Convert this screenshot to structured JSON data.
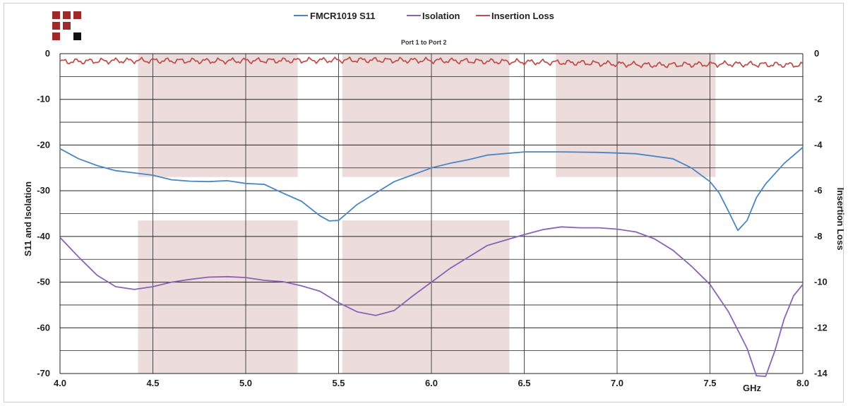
{
  "chart_data": {
    "type": "line",
    "title": "",
    "subtitle": "Port 1 to Port 2",
    "xlabel": "GHz",
    "ylabel_left": "S11 and Isolation",
    "ylabel_right": "Insertion Loss",
    "xlim": [
      4.0,
      8.0
    ],
    "ylim_left": [
      -70,
      0
    ],
    "ylim_right": [
      -14,
      0
    ],
    "x_ticks": [
      "4.0",
      "4.5",
      "5.0",
      "5.5",
      "6.0",
      "6.5",
      "7.0",
      "7.5",
      "8.0"
    ],
    "y_left_ticks": [
      "0",
      "-10",
      "-20",
      "-30",
      "-40",
      "-50",
      "-60",
      "-70"
    ],
    "y_right_ticks": [
      "0",
      "-2",
      "-4",
      "-6",
      "-8",
      "-10",
      "-12",
      "-14"
    ],
    "grid": true,
    "legend_position": "top-center",
    "shaded_bands": [
      {
        "x": [
          4.42,
          5.28
        ],
        "y_left": [
          -27,
          0
        ]
      },
      {
        "x": [
          5.52,
          6.42
        ],
        "y_left": [
          -27,
          0
        ]
      },
      {
        "x": [
          6.67,
          7.53
        ],
        "y_left": [
          -27,
          0
        ]
      },
      {
        "x": [
          4.42,
          5.28
        ],
        "y_left": [
          -70,
          -36.5
        ]
      },
      {
        "x": [
          5.52,
          6.42
        ],
        "y_left": [
          -70,
          -36.5
        ]
      }
    ],
    "band_color": "#ecdcdc",
    "series": [
      {
        "name": "FMCR1019 S11",
        "axis": "left",
        "color": "#4a86c5",
        "x": [
          4.0,
          4.1,
          4.2,
          4.3,
          4.4,
          4.5,
          4.6,
          4.7,
          4.8,
          4.9,
          5.0,
          5.1,
          5.2,
          5.3,
          5.4,
          5.45,
          5.5,
          5.6,
          5.7,
          5.8,
          5.9,
          6.0,
          6.1,
          6.2,
          6.3,
          6.5,
          6.7,
          6.9,
          7.1,
          7.3,
          7.4,
          7.5,
          7.55,
          7.6,
          7.65,
          7.7,
          7.75,
          7.8,
          7.9,
          8.0
        ],
        "values": [
          -20.8,
          -23.0,
          -24.5,
          -25.6,
          -26.1,
          -26.6,
          -27.6,
          -27.9,
          -28.0,
          -27.8,
          -28.4,
          -28.6,
          -30.5,
          -32.3,
          -35.5,
          -36.6,
          -36.5,
          -33.0,
          -30.5,
          -28.0,
          -26.5,
          -25.0,
          -24.0,
          -23.2,
          -22.2,
          -21.5,
          -21.5,
          -21.6,
          -21.9,
          -23.0,
          -25.0,
          -28.0,
          -30.5,
          -34.5,
          -38.7,
          -36.5,
          -31.5,
          -28.5,
          -24.0,
          -20.5
        ]
      },
      {
        "name": "Isolation",
        "axis": "left",
        "color": "#8a63b8",
        "x": [
          4.0,
          4.1,
          4.2,
          4.3,
          4.4,
          4.5,
          4.6,
          4.7,
          4.8,
          4.9,
          5.0,
          5.1,
          5.2,
          5.3,
          5.4,
          5.5,
          5.6,
          5.7,
          5.8,
          5.9,
          6.0,
          6.1,
          6.2,
          6.3,
          6.4,
          6.5,
          6.6,
          6.7,
          6.8,
          6.9,
          7.0,
          7.1,
          7.2,
          7.3,
          7.4,
          7.5,
          7.6,
          7.7,
          7.75,
          7.8,
          7.85,
          7.9,
          7.95,
          8.0
        ],
        "values": [
          -40.2,
          -44.5,
          -48.5,
          -51.0,
          -51.6,
          -51.0,
          -50.0,
          -49.4,
          -48.9,
          -48.8,
          -49.0,
          -49.6,
          -49.9,
          -50.8,
          -52.0,
          -54.5,
          -56.5,
          -57.3,
          -56.2,
          -53.0,
          -50.0,
          -47.0,
          -44.5,
          -42.0,
          -40.8,
          -39.6,
          -38.5,
          -37.9,
          -38.1,
          -38.1,
          -38.4,
          -39.0,
          -40.5,
          -43.0,
          -46.5,
          -50.5,
          -56.5,
          -64.5,
          -70.5,
          -71.5,
          -65.0,
          -58.0,
          -53.0,
          -50.5
        ]
      },
      {
        "name": "Insertion Loss",
        "axis": "right",
        "color": "#c0504d",
        "x": [
          4.0,
          4.4,
          4.8,
          5.2,
          5.6,
          6.0,
          6.4,
          6.8,
          7.0,
          7.2,
          7.6,
          8.0
        ],
        "values": [
          -0.35,
          -0.3,
          -0.32,
          -0.3,
          -0.28,
          -0.3,
          -0.35,
          -0.4,
          -0.45,
          -0.5,
          -0.45,
          -0.5
        ]
      }
    ]
  }
}
